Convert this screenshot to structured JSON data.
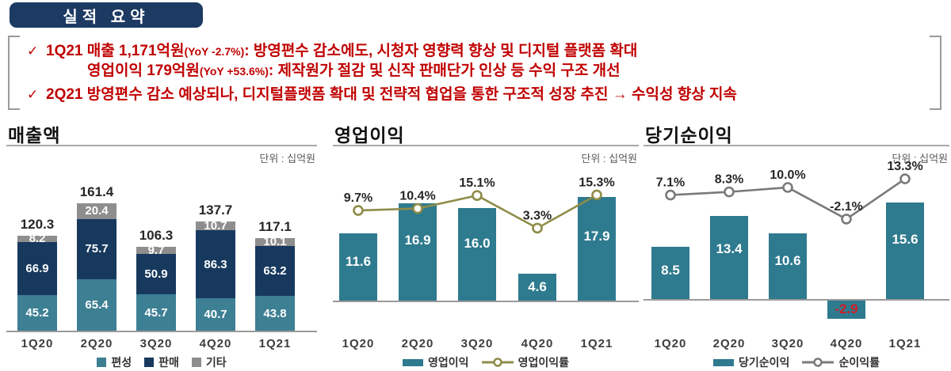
{
  "header": {
    "title": "실적 요약"
  },
  "colors": {
    "accent_navy": "#1D3A63",
    "bullet_red": "#C00000",
    "negative_label_red": "#D02027",
    "teal_bar": "#2E7A8E",
    "navy_bar": "#17395E",
    "gray_bar": "#8E8E8E",
    "olive_line": "#8F8C49",
    "gray_line": "#7A7A7A"
  },
  "summary": {
    "bullets": [
      {
        "check": "✓",
        "line1_main": "1Q21 매출 1,171억원",
        "line1_small": "(YoY -2.7%)",
        "line1_rest": ": 방영편수 감소에도, 시청자 영향력 향상 및 디지털 플랫폼 확대",
        "line2_main": "영업이익 179억원",
        "line2_small": "(YoY +53.6%)",
        "line2_rest": ": 제작원가 절감 및 신작 판매단가 인상 등 수익 구조 개선"
      },
      {
        "check": "✓",
        "text": "2Q21 방영편수 감소 예상되나, 디지털플랫폼 확대 및 전략적 협업을 통한 구조적 성장 추진 →  수익성 향상 지속"
      }
    ]
  },
  "chart_data": [
    {
      "type": "bar",
      "subtype": "stacked",
      "title": "매출액",
      "unit_label": "단위 : 십억원",
      "categories": [
        "1Q20",
        "2Q20",
        "3Q20",
        "4Q20",
        "1Q21"
      ],
      "series": [
        {
          "name": "편성",
          "color": "#3D7F93",
          "values": [
            45.2,
            65.4,
            45.7,
            40.7,
            43.8
          ]
        },
        {
          "name": "판매",
          "color": "#17395E",
          "values": [
            66.9,
            75.7,
            50.9,
            86.3,
            63.2
          ]
        },
        {
          "name": "기타",
          "color": "#8E8E8E",
          "values": [
            8.2,
            20.4,
            9.7,
            10.7,
            10.1
          ]
        }
      ],
      "totals": [
        120.3,
        161.4,
        106.3,
        137.7,
        117.1
      ],
      "xlabel": "",
      "ylabel": "",
      "grid": false,
      "legend_position": "bottom"
    },
    {
      "type": "bar+line",
      "title": "영업이익",
      "unit_label": "단위 : 십억원",
      "categories": [
        "1Q20",
        "2Q20",
        "3Q20",
        "4Q20",
        "1Q21"
      ],
      "series": [
        {
          "name": "영업이익",
          "type": "bar",
          "color": "#2E7A8E",
          "values": [
            11.6,
            16.9,
            16.0,
            4.6,
            17.9
          ]
        },
        {
          "name": "영업이익률",
          "type": "line",
          "color": "#8F8C49",
          "values_pct": [
            9.7,
            10.4,
            15.1,
            3.3,
            15.3
          ]
        }
      ],
      "xlabel": "",
      "ylabel": "",
      "grid": false,
      "legend_position": "bottom"
    },
    {
      "type": "bar+line",
      "title": "당기순이익",
      "unit_label": "단위 : 십억원",
      "categories": [
        "1Q20",
        "2Q20",
        "3Q20",
        "4Q20",
        "1Q21"
      ],
      "series": [
        {
          "name": "당기순이익",
          "type": "bar",
          "color": "#2E7A8E",
          "values": [
            8.5,
            13.4,
            10.6,
            -2.9,
            15.6
          ]
        },
        {
          "name": "순이익률",
          "type": "line",
          "color": "#7A7A7A",
          "values_pct": [
            7.1,
            8.3,
            10.0,
            -2.1,
            13.3
          ]
        }
      ],
      "xlabel": "",
      "ylabel": "",
      "grid": false,
      "legend_position": "bottom"
    }
  ]
}
